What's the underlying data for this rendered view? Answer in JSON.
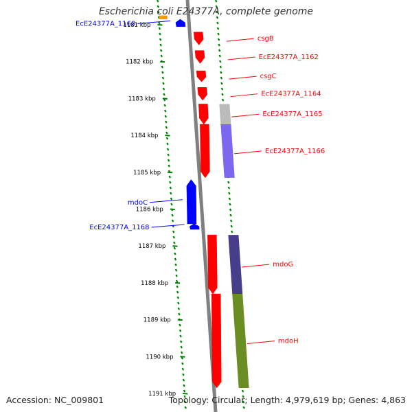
{
  "title": "Escherichia coli E24377A, complete genome",
  "accession": "Accession: NC_009801",
  "topology": "Topology: Circular; Length: 4,979,619 bp; Genes: 4,863",
  "colors": {
    "forward_gene": "#ff0000",
    "reverse_gene": "#0000ff",
    "backbone": "#808080",
    "tick": "#008000",
    "orange_feature": "#ff9900",
    "grey_feature": "#bbbbbb",
    "purple_feature": "#7b68ee",
    "navy_feature": "#483d8b",
    "olive_feature": "#6b8e23"
  },
  "scale_labels": [
    "1181 kbp",
    "1182 kbp",
    "1183 kbp",
    "1184 kbp",
    "1185 kbp",
    "1186 kbp",
    "1187 kbp",
    "1188 kbp",
    "1189 kbp",
    "1190 kbp",
    "1191 kbp"
  ],
  "genes_forward": [
    {
      "name": "csgB",
      "start_kbp": 1181.2,
      "end_kbp": 1181.55
    },
    {
      "name": "EcE24377A_1162",
      "start_kbp": 1181.7,
      "end_kbp": 1182.05
    },
    {
      "name": "csgC",
      "start_kbp": 1182.25,
      "end_kbp": 1182.55
    },
    {
      "name": "EcE24377A_1164",
      "start_kbp": 1182.7,
      "end_kbp": 1183.05
    },
    {
      "name": "EcE24377A_1165",
      "start_kbp": 1183.15,
      "end_kbp": 1183.7
    },
    {
      "name": "EcE24377A_1166",
      "start_kbp": 1183.7,
      "end_kbp": 1185.15
    },
    {
      "name": "mdoG",
      "start_kbp": 1186.7,
      "end_kbp": 1188.3
    },
    {
      "name": "mdoH",
      "start_kbp": 1188.3,
      "end_kbp": 1190.85
    }
  ],
  "genes_reverse": [
    {
      "name": "EcE24377A_1160",
      "start_kbp": 1180.85,
      "end_kbp": 1181.05
    },
    {
      "name": "mdoC",
      "start_kbp": 1185.2,
      "end_kbp": 1186.4
    },
    {
      "name": "EcE24377A_1168",
      "start_kbp": 1186.4,
      "end_kbp": 1186.55
    }
  ],
  "features": [
    {
      "type": "orange",
      "start_kbp": 1180.75,
      "end_kbp": 1180.85
    },
    {
      "type": "grey",
      "start_kbp": 1183.15,
      "end_kbp": 1183.7
    },
    {
      "type": "purple",
      "start_kbp": 1183.7,
      "end_kbp": 1185.15
    },
    {
      "type": "navy",
      "start_kbp": 1186.7,
      "end_kbp": 1188.3
    },
    {
      "type": "olive",
      "start_kbp": 1188.3,
      "end_kbp": 1190.85
    }
  ]
}
